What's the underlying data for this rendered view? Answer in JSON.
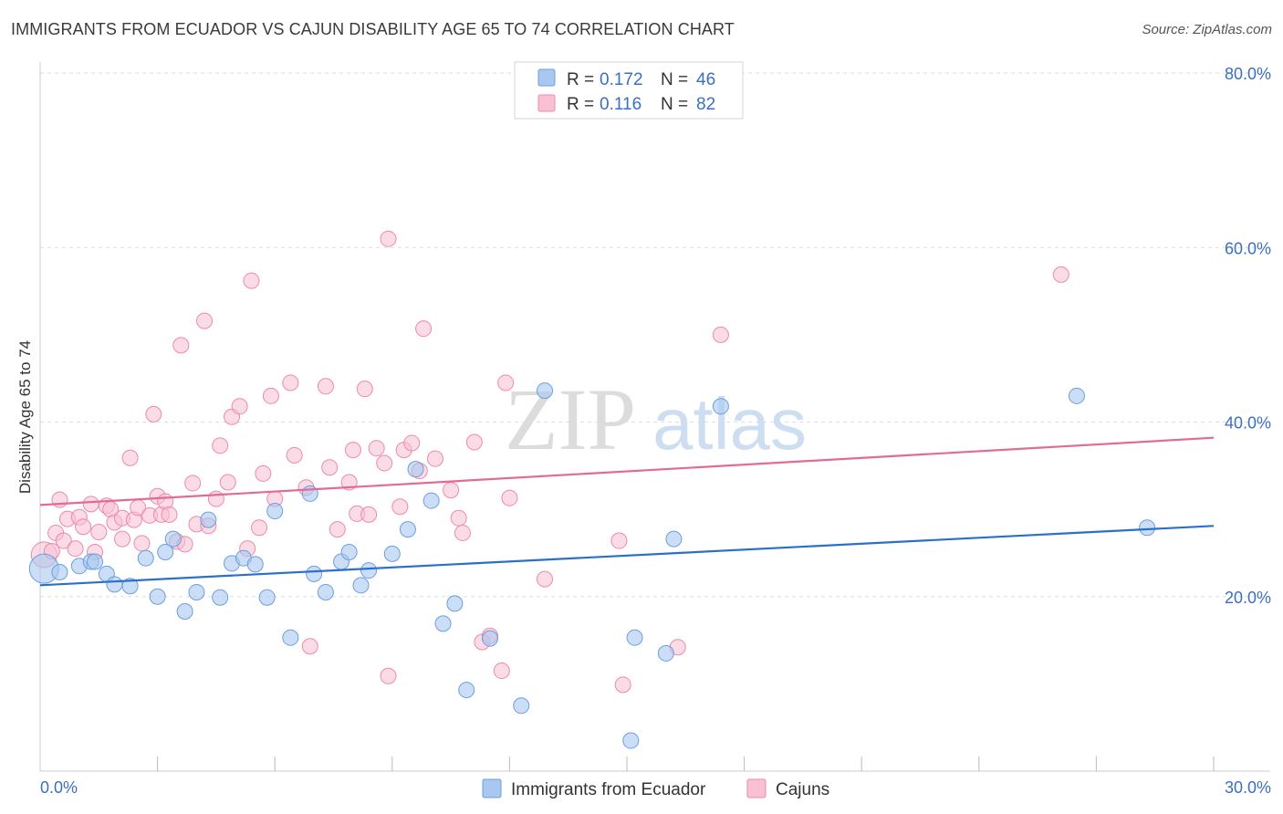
{
  "title": "IMMIGRANTS FROM ECUADOR VS CAJUN DISABILITY AGE 65 TO 74 CORRELATION CHART",
  "source": "Source: ZipAtlas.com",
  "watermark": {
    "zip": "ZIP",
    "atlas": "atlas"
  },
  "legend_top": [
    {
      "r_label": "R = ",
      "r_value": "0.172",
      "n_label": "N = ",
      "n_value": "46"
    },
    {
      "r_label": "R = ",
      "r_value": "0.116",
      "n_label": "N = ",
      "n_value": "82"
    }
  ],
  "colors": {
    "ecuador_fill": "#a9c8f0",
    "ecuador_stroke": "#6a9fe0",
    "ecuador_line": "#2a6fcb",
    "cajun_fill": "#f8c0d2",
    "cajun_stroke": "#ec8aab",
    "cajun_line": "#e46a96",
    "grid": "#dddddd",
    "tick_text": "#3a6fc4"
  },
  "chart_data": {
    "type": "scatter",
    "title": "IMMIGRANTS FROM ECUADOR VS CAJUN DISABILITY AGE 65 TO 74 CORRELATION CHART",
    "xlabel": "",
    "ylabel": "Disability Age 65 to 74",
    "xlim": [
      0,
      30
    ],
    "ylim": [
      0,
      80
    ],
    "x_tick_labels": [
      "0.0%",
      "30.0%"
    ],
    "y_ticks": [
      20,
      40,
      60,
      80
    ],
    "y_tick_labels": [
      "20.0%",
      "40.0%",
      "60.0%",
      "80.0%"
    ],
    "grid": true,
    "legend_position": "top-center and bottom",
    "series": [
      {
        "name": "Immigrants from Ecuador",
        "r": 0.172,
        "n": 46,
        "trend": {
          "x0": 0,
          "y0": 21.3,
          "x1": 30,
          "y1": 28.1
        },
        "points": [
          [
            0.1,
            23.2
          ],
          [
            0.5,
            22.8
          ],
          [
            1.0,
            23.5
          ],
          [
            1.3,
            24.0
          ],
          [
            1.4,
            24.0
          ],
          [
            1.7,
            22.6
          ],
          [
            1.9,
            21.4
          ],
          [
            2.3,
            21.2
          ],
          [
            2.7,
            24.4
          ],
          [
            3.0,
            20.0
          ],
          [
            3.2,
            25.1
          ],
          [
            3.4,
            26.6
          ],
          [
            3.7,
            18.3
          ],
          [
            4.0,
            20.5
          ],
          [
            4.3,
            28.8
          ],
          [
            4.6,
            19.9
          ],
          [
            4.9,
            23.8
          ],
          [
            5.2,
            24.4
          ],
          [
            5.5,
            23.7
          ],
          [
            5.8,
            19.9
          ],
          [
            6.0,
            29.8
          ],
          [
            6.4,
            15.3
          ],
          [
            6.9,
            31.8
          ],
          [
            7.0,
            22.6
          ],
          [
            7.3,
            20.5
          ],
          [
            7.7,
            24.0
          ],
          [
            7.9,
            25.1
          ],
          [
            8.2,
            21.3
          ],
          [
            8.4,
            23.0
          ],
          [
            9.0,
            24.9
          ],
          [
            9.4,
            27.7
          ],
          [
            9.6,
            34.6
          ],
          [
            10.0,
            31.0
          ],
          [
            10.3,
            16.9
          ],
          [
            10.6,
            19.2
          ],
          [
            10.9,
            9.3
          ],
          [
            11.5,
            15.2
          ],
          [
            12.3,
            7.5
          ],
          [
            12.9,
            43.6
          ],
          [
            15.1,
            3.5
          ],
          [
            15.2,
            15.3
          ],
          [
            16.0,
            13.5
          ],
          [
            16.2,
            26.6
          ],
          [
            17.4,
            41.8
          ],
          [
            26.5,
            43.0
          ],
          [
            28.3,
            27.9
          ]
        ]
      },
      {
        "name": "Cajuns",
        "r": 0.116,
        "n": 82,
        "trend": {
          "x0": 0,
          "y0": 30.5,
          "x1": 30,
          "y1": 38.2
        },
        "points": [
          [
            0.1,
            24.8
          ],
          [
            0.3,
            25.2
          ],
          [
            0.4,
            27.3
          ],
          [
            0.5,
            31.1
          ],
          [
            0.6,
            26.4
          ],
          [
            0.7,
            28.9
          ],
          [
            0.9,
            25.5
          ],
          [
            1.0,
            29.1
          ],
          [
            1.1,
            28.0
          ],
          [
            1.3,
            30.6
          ],
          [
            1.4,
            25.1
          ],
          [
            1.5,
            27.4
          ],
          [
            1.7,
            30.4
          ],
          [
            1.8,
            30.0
          ],
          [
            1.9,
            28.5
          ],
          [
            2.1,
            29.0
          ],
          [
            2.1,
            26.6
          ],
          [
            2.3,
            35.9
          ],
          [
            2.4,
            28.8
          ],
          [
            2.5,
            30.2
          ],
          [
            2.6,
            26.1
          ],
          [
            2.8,
            29.3
          ],
          [
            2.9,
            40.9
          ],
          [
            3.0,
            31.5
          ],
          [
            3.1,
            29.4
          ],
          [
            3.2,
            30.9
          ],
          [
            3.3,
            29.4
          ],
          [
            3.5,
            26.3
          ],
          [
            3.6,
            48.8
          ],
          [
            3.7,
            26.0
          ],
          [
            3.9,
            33.0
          ],
          [
            4.0,
            28.3
          ],
          [
            4.2,
            51.6
          ],
          [
            4.3,
            28.1
          ],
          [
            4.5,
            31.2
          ],
          [
            4.6,
            37.3
          ],
          [
            4.8,
            33.1
          ],
          [
            4.9,
            40.6
          ],
          [
            5.1,
            41.8
          ],
          [
            5.3,
            25.5
          ],
          [
            5.4,
            56.2
          ],
          [
            5.6,
            27.9
          ],
          [
            5.7,
            34.1
          ],
          [
            5.9,
            43.0
          ],
          [
            6.0,
            31.2
          ],
          [
            6.4,
            44.5
          ],
          [
            6.5,
            36.2
          ],
          [
            6.8,
            32.5
          ],
          [
            6.9,
            14.3
          ],
          [
            7.3,
            44.1
          ],
          [
            7.4,
            34.8
          ],
          [
            7.6,
            27.7
          ],
          [
            7.9,
            33.1
          ],
          [
            8.0,
            36.8
          ],
          [
            8.1,
            29.5
          ],
          [
            8.3,
            43.8
          ],
          [
            8.4,
            29.4
          ],
          [
            8.6,
            37.0
          ],
          [
            8.8,
            35.3
          ],
          [
            8.9,
            10.9
          ],
          [
            9.2,
            30.3
          ],
          [
            9.3,
            36.8
          ],
          [
            9.5,
            37.6
          ],
          [
            9.7,
            34.4
          ],
          [
            9.8,
            50.7
          ],
          [
            10.1,
            35.8
          ],
          [
            10.5,
            32.2
          ],
          [
            10.7,
            29.0
          ],
          [
            10.8,
            27.3
          ],
          [
            11.1,
            37.7
          ],
          [
            11.3,
            14.8
          ],
          [
            11.5,
            15.5
          ],
          [
            11.8,
            11.5
          ],
          [
            11.9,
            44.5
          ],
          [
            12.0,
            31.3
          ],
          [
            12.9,
            22.0
          ],
          [
            14.8,
            26.4
          ],
          [
            14.9,
            9.9
          ],
          [
            16.3,
            14.2
          ],
          [
            17.4,
            50.0
          ],
          [
            26.1,
            56.9
          ],
          [
            8.9,
            61.0
          ]
        ]
      }
    ]
  },
  "legend_bottom": [
    {
      "label": "Immigrants from Ecuador"
    },
    {
      "label": "Cajuns"
    }
  ]
}
